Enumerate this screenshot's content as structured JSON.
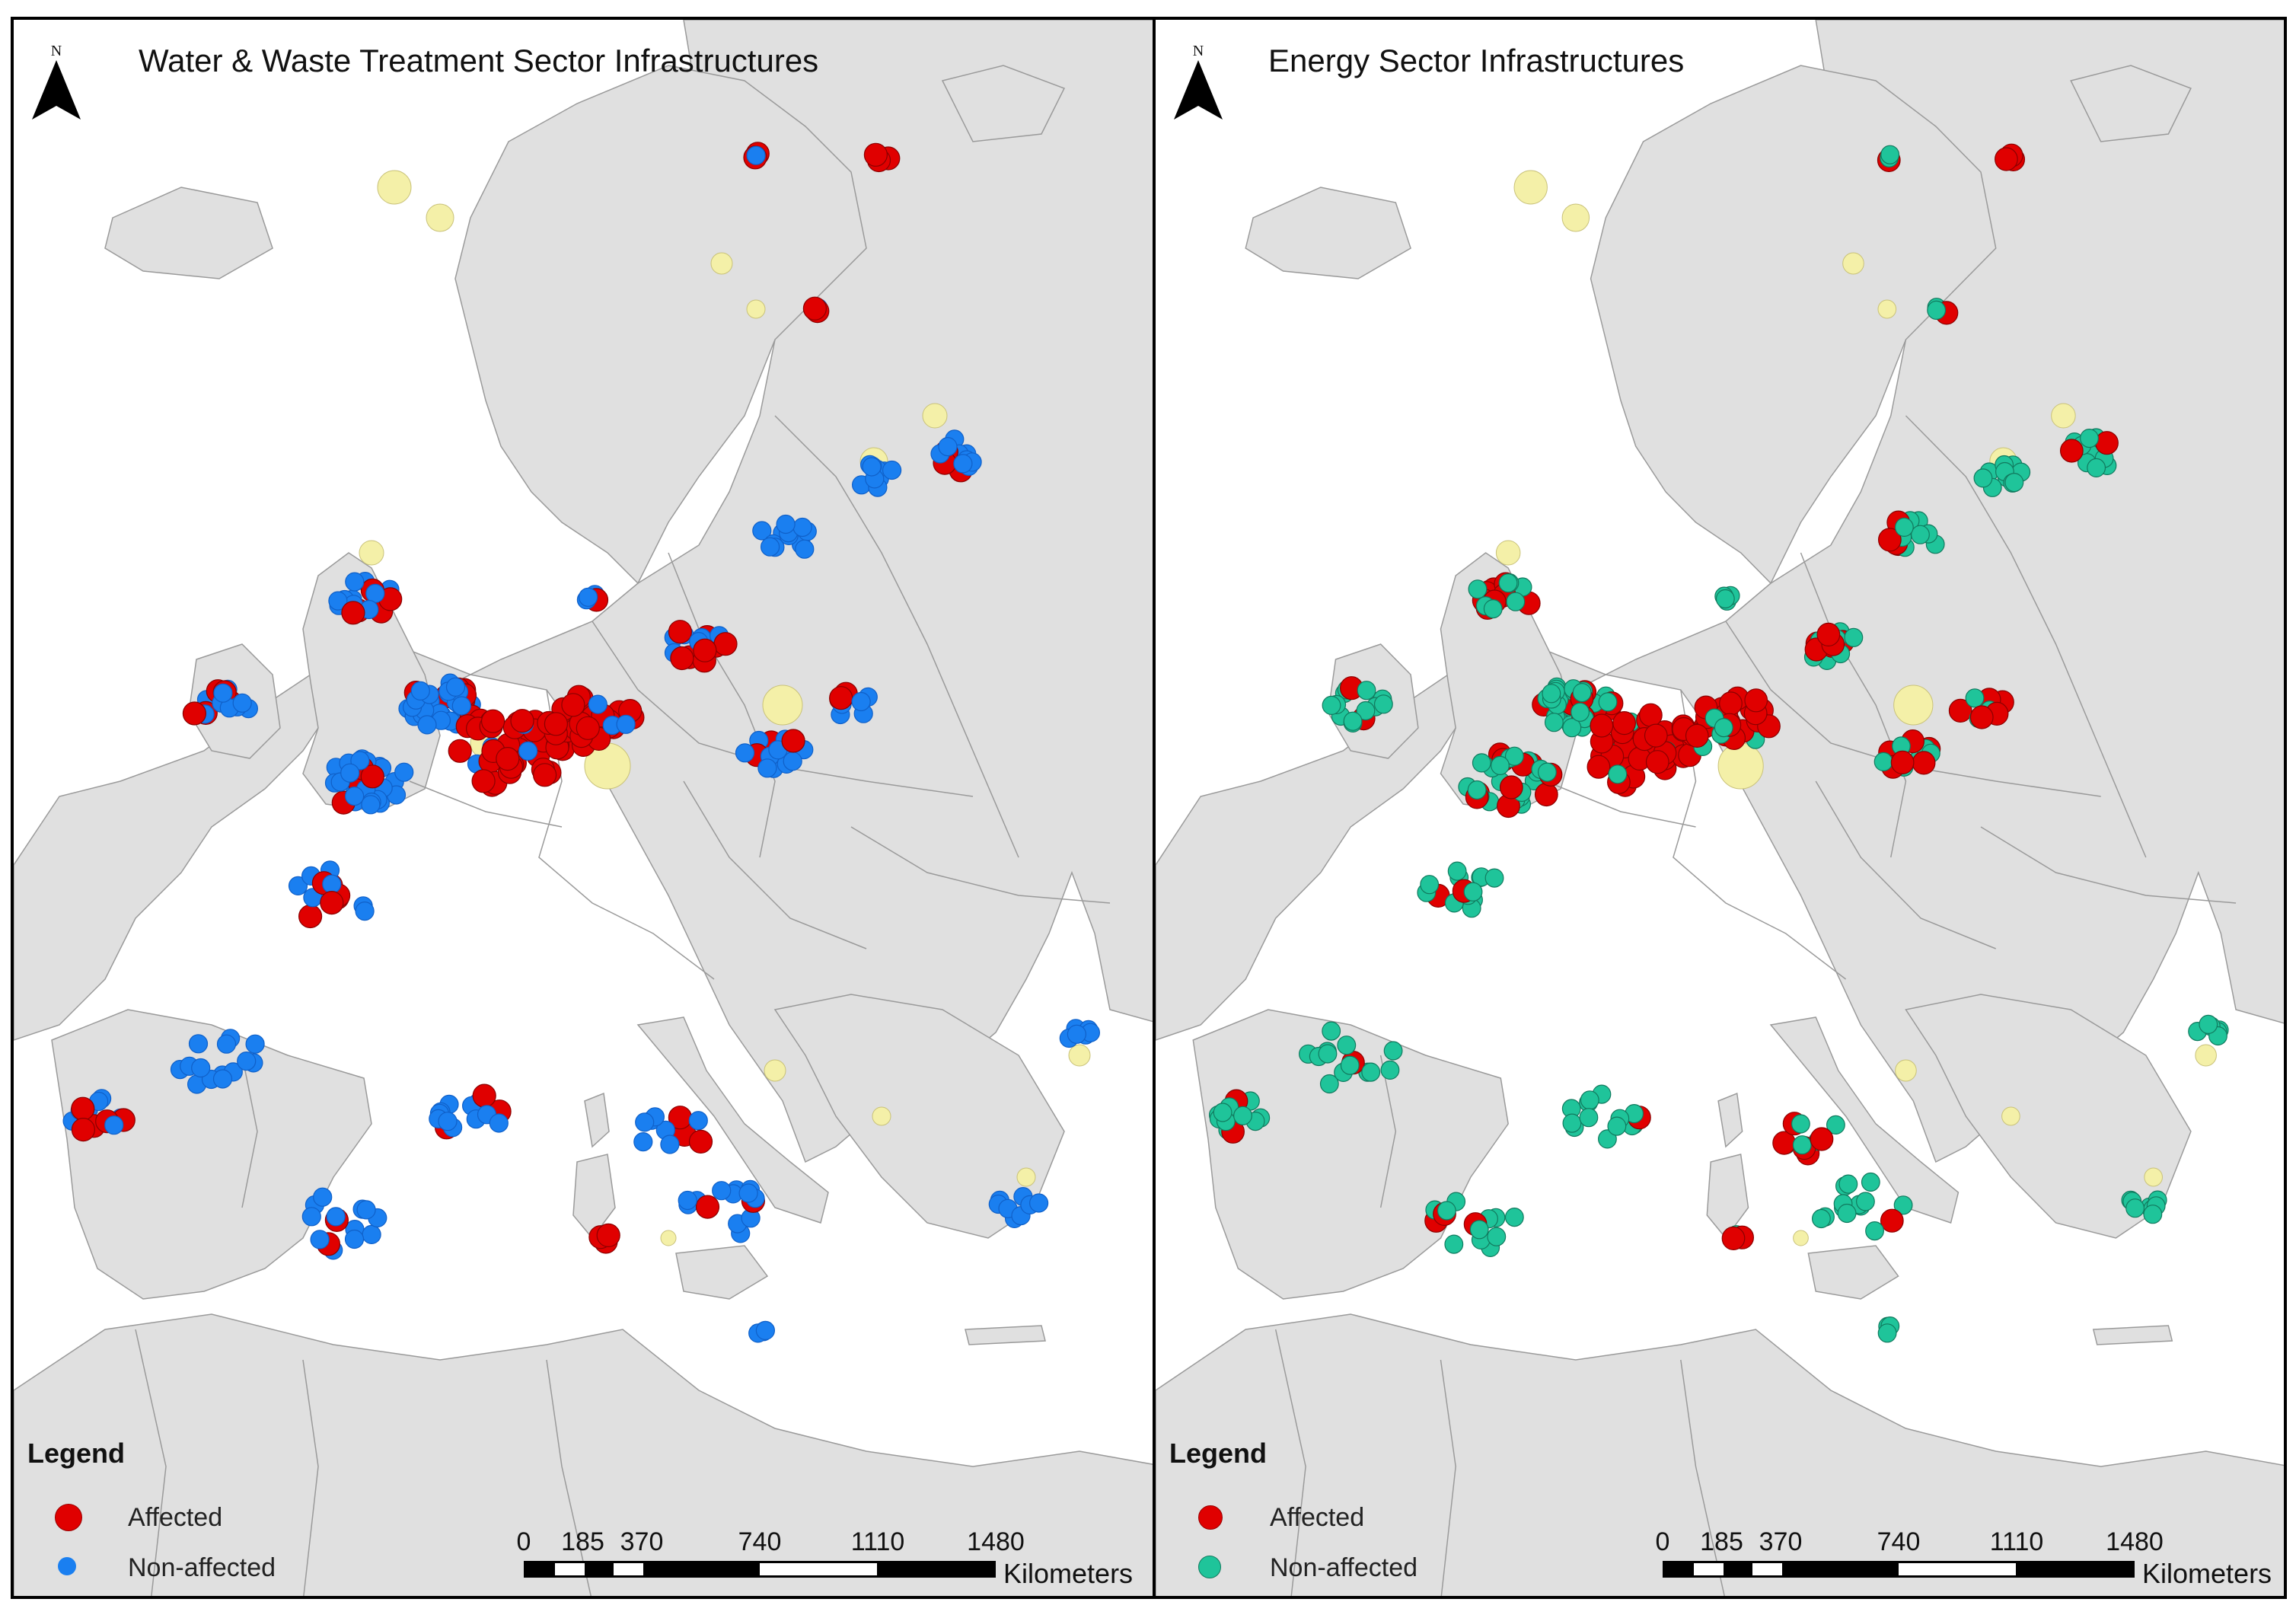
{
  "panels": [
    {
      "title": "Water & Waste Treatment Sector Infrastructures",
      "affected_color": "#e00000",
      "nonaffected_color": "#1a7ff0",
      "nonaffected_stroke": "#1060c8",
      "north_label": "N",
      "legend": {
        "title": "Legend",
        "items": [
          {
            "label": "Affected",
            "symbol": "red-circle-icon"
          },
          {
            "label": "Non-affected",
            "symbol": "blue-circle-icon"
          }
        ]
      },
      "scale": {
        "ticks": [
          "0",
          "185",
          "370",
          "740",
          "1110",
          "1480"
        ],
        "unit": "Kilometers"
      }
    },
    {
      "title": "Energy Sector Infrastructures",
      "affected_color": "#e00000",
      "nonaffected_color": "#1fc49a",
      "nonaffected_stroke": "#117a5e",
      "north_label": "N",
      "legend": {
        "title": "Legend",
        "items": [
          {
            "label": "Affected",
            "symbol": "red-circle-icon"
          },
          {
            "label": "Non-affected",
            "symbol": "teal-circle-icon"
          }
        ]
      },
      "scale": {
        "ticks": [
          "0",
          "185",
          "370",
          "740",
          "1110",
          "1480"
        ],
        "unit": "Kilometers"
      }
    }
  ],
  "colors": {
    "land": "#e0e0e0",
    "sea": "#ffffff",
    "border": "#9a9a9a",
    "flood_zone": "#f4f0a8"
  }
}
